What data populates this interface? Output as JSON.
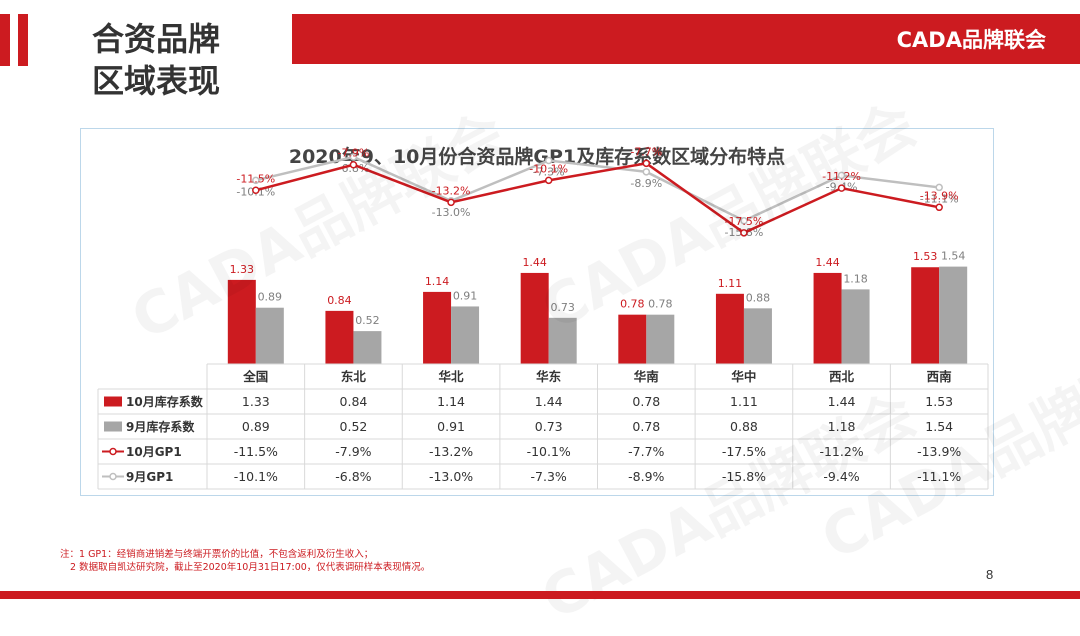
{
  "header": {
    "title_line1": "合资品牌",
    "title_line2": "区域表现",
    "brand": "CADA品牌联会"
  },
  "footer": {
    "note_line1": "注：1  GP1：经销商进销差与终端开票价的比值，不包含返利及衍生收入；",
    "note_line2": "2  数据取自凯达研究院，截止至2020年10月31日17:00，仅代表调研样本表现情况。",
    "page_number": "8"
  },
  "watermark_text": "CADA品牌联会",
  "colors": {
    "accent": "#cc1b20",
    "gray": "#a6a6a6",
    "gray_line": "#bfbfbf"
  },
  "chart_data": {
    "type": "bar",
    "title": "2020年9、10月份合资品牌GP1及库存系数区域分布特点",
    "categories": [
      "全国",
      "东北",
      "华北",
      "华东",
      "华南",
      "华中",
      "西北",
      "西南"
    ],
    "series": [
      {
        "name": "10月库存系数",
        "kind": "bar",
        "values": [
          1.33,
          0.84,
          1.14,
          1.44,
          0.78,
          1.11,
          1.44,
          1.53
        ],
        "labels": [
          "1.33",
          "0.84",
          "1.14",
          "1.44",
          "0.78",
          "1.11",
          "1.44",
          "1.53"
        ]
      },
      {
        "name": "9月库存系数",
        "kind": "bar",
        "values": [
          0.89,
          0.52,
          0.91,
          0.73,
          0.78,
          0.88,
          1.18,
          1.54
        ],
        "labels": [
          "0.89",
          "0.52",
          "0.91",
          "0.73",
          "0.78",
          "0.88",
          "1.18",
          "1.54"
        ]
      },
      {
        "name": "10月GP1",
        "kind": "line",
        "values": [
          -11.5,
          -7.9,
          -13.2,
          -10.1,
          -7.7,
          -17.5,
          -11.2,
          -13.9
        ],
        "labels": [
          "-11.5%",
          "-7.9%",
          "-13.2%",
          "-10.1%",
          "-7.7%",
          "-17.5%",
          "-11.2%",
          "-13.9%"
        ]
      },
      {
        "name": "9月GP1",
        "kind": "line",
        "values": [
          -10.1,
          -6.8,
          -13.0,
          -7.3,
          -8.9,
          -15.8,
          -9.4,
          -11.1
        ],
        "labels": [
          "-10.1%",
          "-6.8%",
          "-13.0%",
          "-7.3%",
          "-8.9%",
          "-15.8%",
          "-9.4%",
          "-11.1%"
        ]
      }
    ],
    "bar_ylim": [
      0,
      3.7
    ],
    "line_ylim": [
      -36,
      -3
    ],
    "legend": "data-table-left"
  }
}
